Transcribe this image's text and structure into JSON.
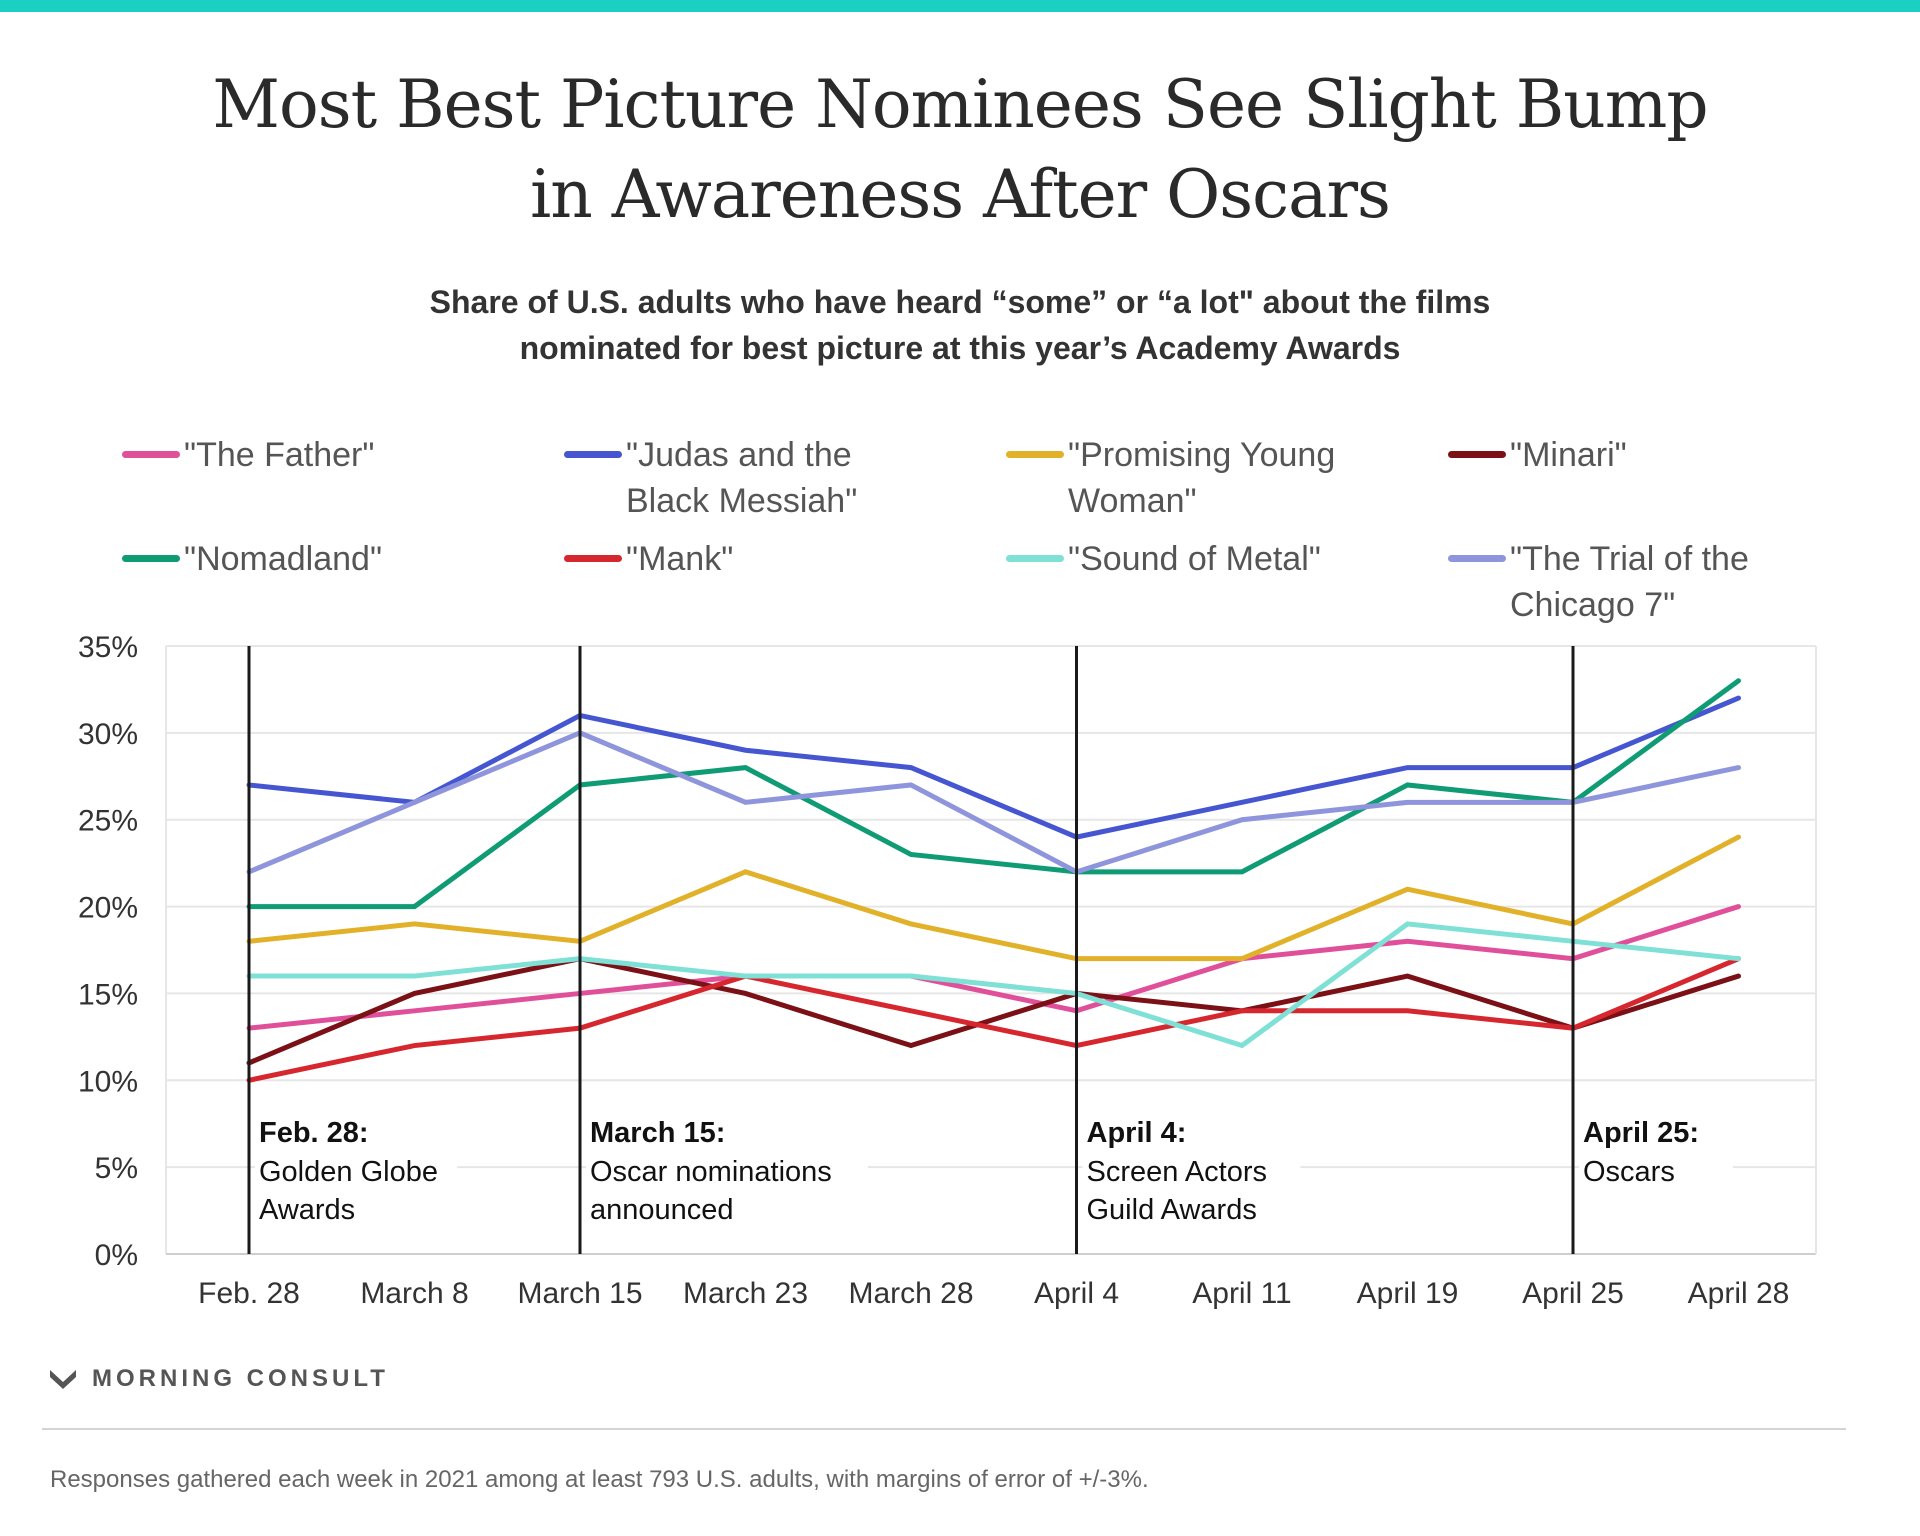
{
  "header": {
    "title_line1": "Most Best Picture Nominees See Slight Bump",
    "title_line2": "in Awareness After Oscars",
    "subtitle_line1": "Share of U.S. adults who have heard “some” or “a lot\" about the films",
    "subtitle_line2": "nominated for best picture at this year’s Academy Awards"
  },
  "chart_data": {
    "type": "line",
    "x": [
      "Feb. 28",
      "March 8",
      "March 15",
      "March 23",
      "March 28",
      "April 4",
      "April 11",
      "April 19",
      "April 25",
      "April 28"
    ],
    "ylim": [
      0,
      35
    ],
    "yticks": [
      "0%",
      "5%",
      "10%",
      "15%",
      "20%",
      "25%",
      "30%",
      "35%"
    ],
    "grid": "horizontal",
    "legend_position": "top",
    "series": [
      {
        "name": "\"The Father\"",
        "color": "#e0509a",
        "values": [
          13,
          14,
          15,
          16,
          16,
          14,
          17,
          18,
          17,
          20
        ]
      },
      {
        "name": "\"Judas and the Black Messiah\"",
        "color": "#4556d0",
        "values": [
          27,
          26,
          31,
          29,
          28,
          24,
          26,
          28,
          28,
          32
        ]
      },
      {
        "name": "\"Promising Young Woman\"",
        "color": "#e2b12a",
        "values": [
          18,
          19,
          18,
          22,
          19,
          17,
          17,
          21,
          19,
          24
        ]
      },
      {
        "name": "\"Minari\"",
        "color": "#7b1116",
        "values": [
          11,
          15,
          17,
          15,
          12,
          15,
          14,
          16,
          13,
          16
        ]
      },
      {
        "name": "\"Nomadland\"",
        "color": "#0f9b74",
        "values": [
          20,
          20,
          27,
          28,
          23,
          22,
          22,
          27,
          26,
          33
        ]
      },
      {
        "name": "\"Mank\"",
        "color": "#d6262e",
        "values": [
          10,
          12,
          13,
          16,
          14,
          12,
          14,
          14,
          13,
          17
        ]
      },
      {
        "name": "\"Sound of Metal\"",
        "color": "#7fe0d6",
        "values": [
          16,
          16,
          17,
          16,
          16,
          15,
          12,
          19,
          18,
          17
        ]
      },
      {
        "name": "\"The Trial of the Chicago 7\"",
        "color": "#8e95dc",
        "values": [
          22,
          26,
          30,
          26,
          27,
          22,
          25,
          26,
          26,
          28
        ]
      }
    ],
    "annotations": [
      {
        "at": "Feb. 28",
        "date": "Feb. 28:",
        "lines": [
          "Golden Globe",
          "Awards"
        ]
      },
      {
        "at": "March 15",
        "date": "March 15:",
        "lines": [
          "Oscar nominations",
          "announced"
        ]
      },
      {
        "at": "April 4",
        "date": "April 4:",
        "lines": [
          "Screen Actors",
          "Guild Awards"
        ]
      },
      {
        "at": "April 25",
        "date": "April 25:",
        "lines": [
          "Oscars"
        ]
      }
    ]
  },
  "legend": {
    "items": [
      {
        "label": "\"The Father\"",
        "color": "#e0509a"
      },
      {
        "label": "\"Judas and the Black Messiah\"",
        "color": "#4556d0"
      },
      {
        "label": "\"Promising Young Woman\"",
        "color": "#e2b12a"
      },
      {
        "label": "\"Minari\"",
        "color": "#7b1116"
      },
      {
        "label": "\"Nomadland\"",
        "color": "#0f9b74"
      },
      {
        "label": "\"Mank\"",
        "color": "#d6262e"
      },
      {
        "label": "\"Sound of Metal\"",
        "color": "#7fe0d6"
      },
      {
        "label": "\"The Trial of the Chicago 7\"",
        "color": "#8e95dc"
      }
    ]
  },
  "branding": {
    "name": "MORNING CONSULT",
    "icon": "morning-consult-logo-icon"
  },
  "footnote": "Responses gathered each week in 2021 among at least 793 U.S. adults, with margins of error of +/-3%.",
  "colors": {
    "accent_bar": "#1ccfc3",
    "grid": "#e6e6e6",
    "event_line": "#1a1a1a"
  }
}
